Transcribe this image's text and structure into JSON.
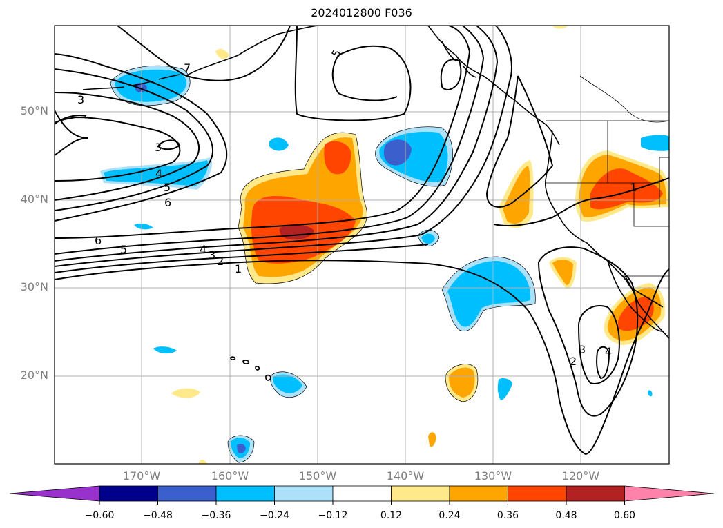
{
  "title": "2024012800 F036",
  "map": {
    "lat_labels": [
      "50°N",
      "40°N",
      "30°N",
      "20°N"
    ],
    "lon_labels": [
      "170°W",
      "160°W",
      "150°W",
      "140°W",
      "130°W",
      "120°W"
    ],
    "contour_labels": [
      "1",
      "2",
      "3",
      "4",
      "5",
      "6",
      "7"
    ]
  },
  "colorbar": {
    "ticks": [
      "−0.60",
      "−0.48",
      "−0.36",
      "−0.24",
      "−0.12",
      "0.12",
      "0.24",
      "0.36",
      "0.48",
      "0.60"
    ],
    "colors": [
      "#9932CC",
      "#00008B",
      "#3B5FCD",
      "#00BFFF",
      "#ADE1FA",
      "#FFFFFF",
      "#FFE98A",
      "#FFA500",
      "#FF4500",
      "#B22222",
      "#FF82AB"
    ]
  }
}
